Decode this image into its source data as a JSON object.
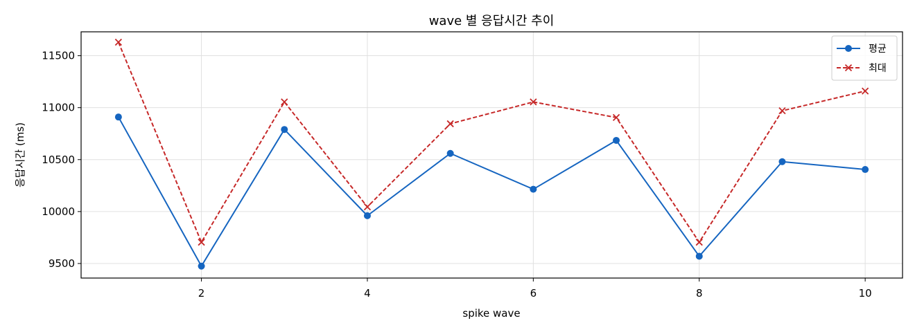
{
  "chart_data": {
    "type": "line",
    "title": "wave 별 응답시간 추이",
    "xlabel": "spike wave",
    "ylabel": "응답시간 (ms)",
    "x": [
      1,
      2,
      3,
      4,
      5,
      6,
      7,
      8,
      9,
      10
    ],
    "xticks": [
      2,
      4,
      6,
      8,
      10
    ],
    "yticks": [
      9500,
      10000,
      10500,
      11000,
      11500
    ],
    "xlim": [
      0.55,
      10.45
    ],
    "ylim": [
      9360,
      11730
    ],
    "grid": true,
    "legend_position": "top-right",
    "series": [
      {
        "name": "평균",
        "color": "#1565c0",
        "marker": "circle",
        "line_style": "solid",
        "values": [
          10910,
          9475,
          10790,
          9960,
          10560,
          10215,
          10685,
          9570,
          10480,
          10405
        ]
      },
      {
        "name": "최대",
        "color": "#c62828",
        "marker": "x",
        "line_style": "dashed",
        "values": [
          11630,
          9705,
          11055,
          10045,
          10845,
          11055,
          10905,
          9705,
          10970,
          11160
        ]
      }
    ]
  }
}
